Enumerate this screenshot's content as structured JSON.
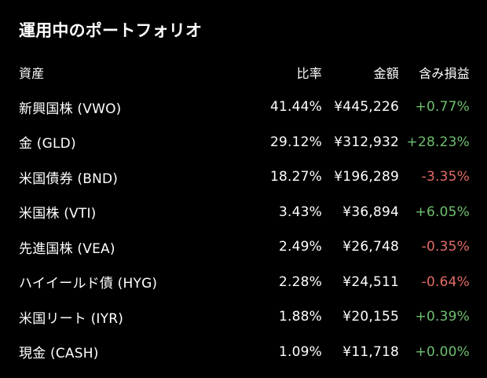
{
  "title": "運用中のポートフォリオ",
  "columns": {
    "asset": "資産",
    "ratio": "比率",
    "amount": "金額",
    "gain": "含み損益"
  },
  "rows": [
    {
      "asset": "新興国株 (VWO)",
      "ratio": "41.44%",
      "amount": "¥445,226",
      "gain": "+0.77%",
      "sign": "pos"
    },
    {
      "asset": "金 (GLD)",
      "ratio": "29.12%",
      "amount": "¥312,932",
      "gain": "+28.23%",
      "sign": "pos"
    },
    {
      "asset": "米国債券 (BND)",
      "ratio": "18.27%",
      "amount": "¥196,289",
      "gain": "-3.35%",
      "sign": "neg"
    },
    {
      "asset": "米国株 (VTI)",
      "ratio": "3.43%",
      "amount": "¥36,894",
      "gain": "+6.05%",
      "sign": "pos"
    },
    {
      "asset": "先進国株 (VEA)",
      "ratio": "2.49%",
      "amount": "¥26,748",
      "gain": "-0.35%",
      "sign": "neg"
    },
    {
      "asset": "ハイイールド債 (HYG)",
      "ratio": "2.28%",
      "amount": "¥24,511",
      "gain": "-0.64%",
      "sign": "neg"
    },
    {
      "asset": "米国リート (IYR)",
      "ratio": "1.88%",
      "amount": "¥20,155",
      "gain": "+0.39%",
      "sign": "pos"
    },
    {
      "asset": "現金 (CASH)",
      "ratio": "1.09%",
      "amount": "¥11,718",
      "gain": "+0.00%",
      "sign": "pos"
    }
  ],
  "colors": {
    "background": "#000000",
    "text": "#ffffff",
    "positive": "#6fbf6f",
    "negative": "#e36b65"
  }
}
